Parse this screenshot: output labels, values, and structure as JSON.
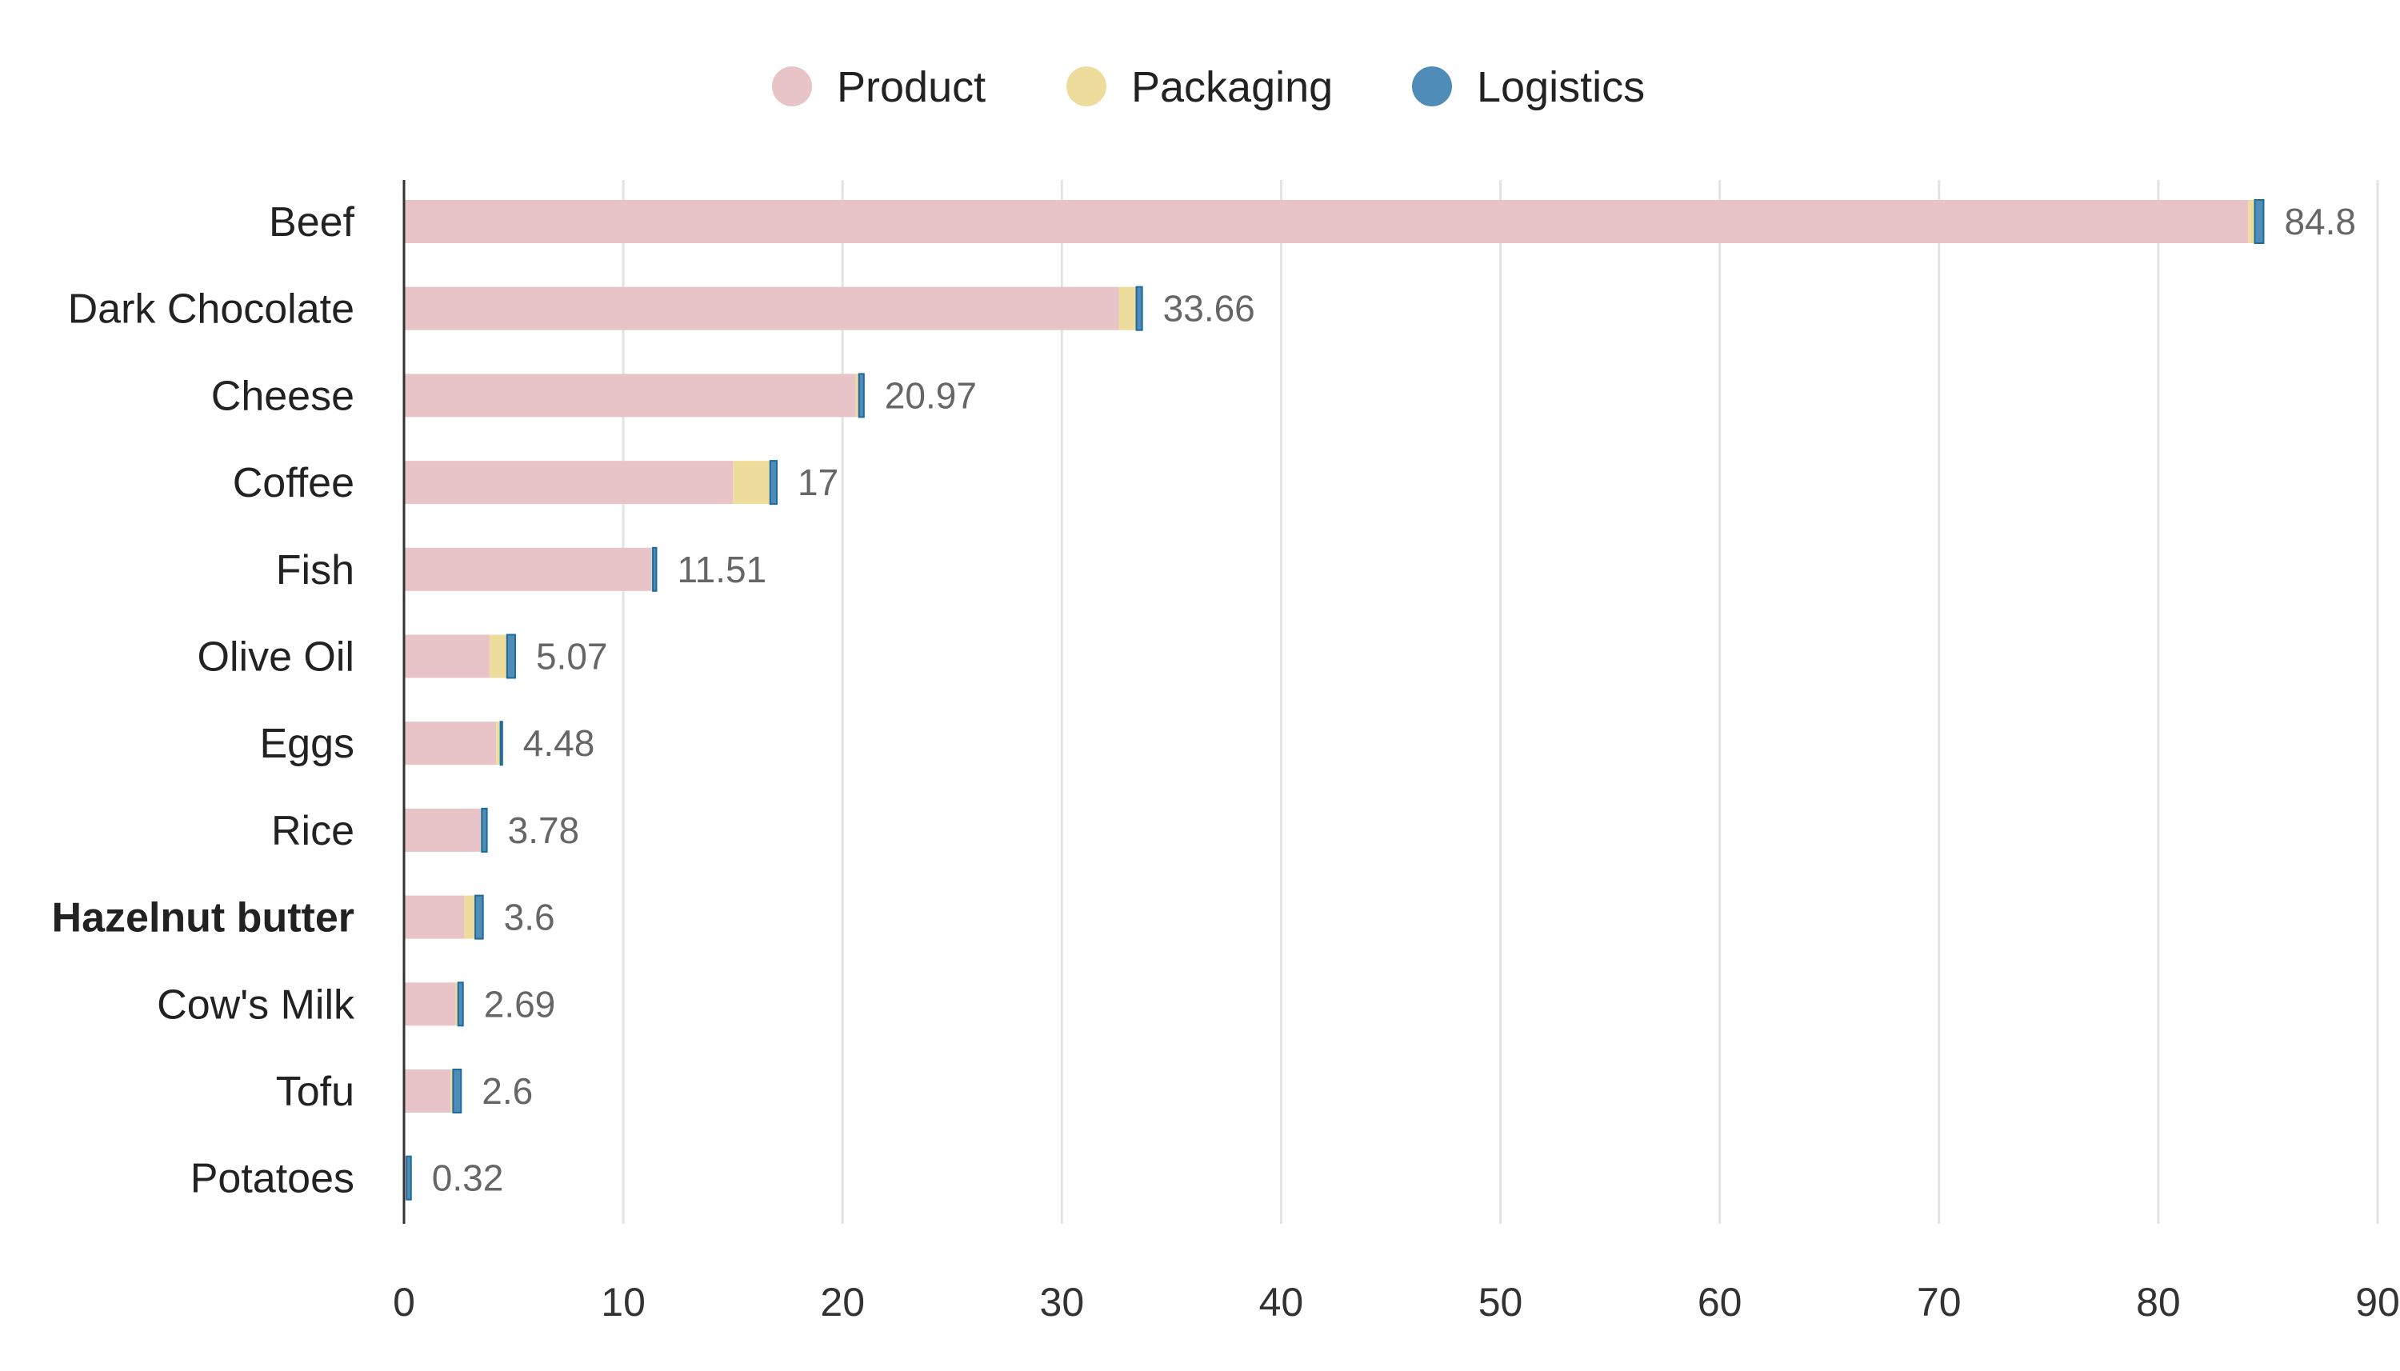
{
  "chart_data": {
    "type": "bar",
    "orientation": "horizontal",
    "stacked": true,
    "title": "",
    "xlabel": "",
    "ylabel": "",
    "xlim": [
      0,
      90
    ],
    "xticks": [
      0,
      10,
      20,
      30,
      40,
      50,
      60,
      70,
      80,
      90
    ],
    "grid": true,
    "legend_position": "top-center",
    "categories": [
      "Beef",
      "Dark Chocolate",
      "Cheese",
      "Coffee",
      "Fish",
      "Olive Oil",
      "Eggs",
      "Rice",
      "Hazelnut butter",
      "Cow's Milk",
      "Tofu",
      "Potatoes"
    ],
    "highlighted_category": "Hazelnut butter",
    "totals": [
      84.8,
      33.66,
      20.97,
      17,
      11.51,
      5.07,
      4.48,
      3.78,
      3.6,
      2.69,
      2.6,
      0.32
    ],
    "total_labels": [
      "84.8",
      "33.66",
      "20.97",
      "17",
      "11.51",
      "5.07",
      "4.48",
      "3.78",
      "3.6",
      "2.69",
      "2.6",
      "0.32"
    ],
    "series": [
      {
        "name": "Product",
        "color": "#e8c3c8",
        "values": [
          84.1,
          32.6,
          20.6,
          15.0,
          11.3,
          3.9,
          4.2,
          3.5,
          2.75,
          2.35,
          2.12,
          0.1
        ]
      },
      {
        "name": "Packaging",
        "color": "#eedc9d",
        "values": [
          0.3,
          0.8,
          0.15,
          1.7,
          0.05,
          0.8,
          0.2,
          0.05,
          0.5,
          0.12,
          0.12,
          0.02
        ]
      },
      {
        "name": "Logistics",
        "color": "#4f8db8",
        "stroke": "#1d6b9c",
        "values": [
          0.4,
          0.26,
          0.22,
          0.3,
          0.16,
          0.37,
          0.08,
          0.23,
          0.35,
          0.22,
          0.36,
          0.2
        ]
      }
    ]
  }
}
